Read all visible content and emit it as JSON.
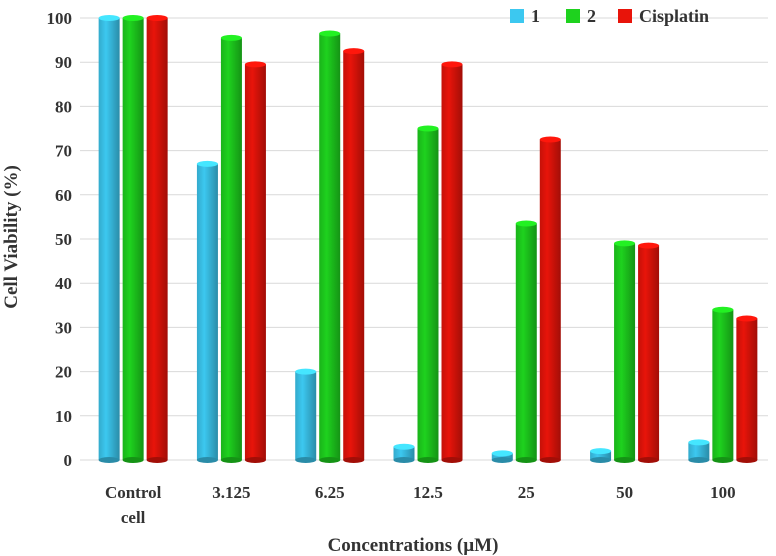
{
  "chart_data": {
    "type": "bar",
    "title": "",
    "xlabel": "Concentrations (µM)",
    "ylabel": "Cell Viability (%)",
    "ylim": [
      0,
      100
    ],
    "yticks": [
      0,
      10,
      20,
      30,
      40,
      50,
      60,
      70,
      80,
      90,
      100
    ],
    "grid": true,
    "legend_position": "top-right",
    "categories": [
      [
        "Control",
        "cell"
      ],
      [
        "3.125"
      ],
      [
        "6.25"
      ],
      [
        "12.5"
      ],
      [
        "25"
      ],
      [
        "50"
      ],
      [
        "100"
      ]
    ],
    "series": [
      {
        "name": "1",
        "color": "#3cc8f0",
        "values": [
          100,
          67,
          20,
          3,
          1.5,
          2,
          4
        ]
      },
      {
        "name": "2",
        "color": "#1ed21e",
        "values": [
          100,
          95.5,
          96.5,
          75,
          53.5,
          49,
          34
        ]
      },
      {
        "name": "Cisplatin",
        "color": "#e8140a",
        "values": [
          100,
          89.5,
          92.5,
          89.5,
          72.5,
          48.5,
          32
        ]
      }
    ]
  }
}
